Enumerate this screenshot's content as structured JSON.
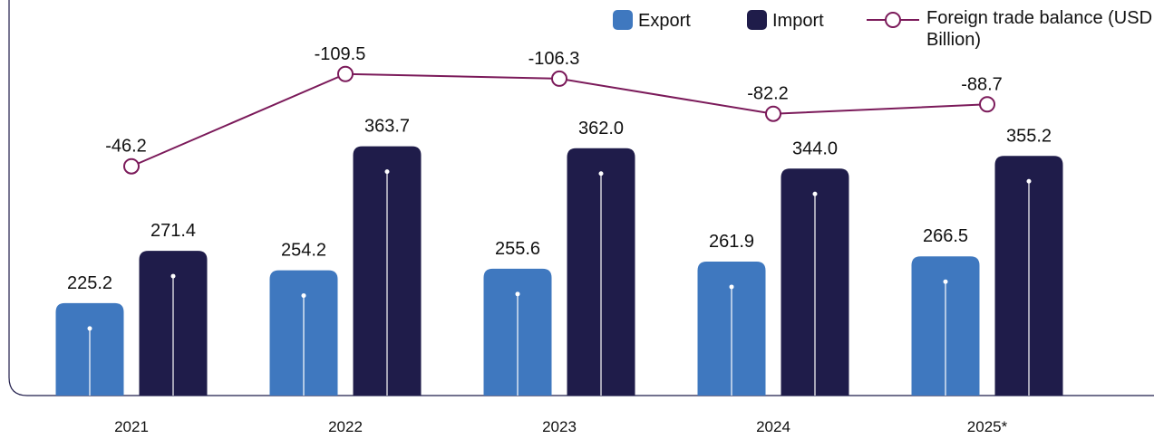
{
  "chart_data": {
    "type": "bar",
    "categories": [
      "2021",
      "2022",
      "2023",
      "2024",
      "2025*"
    ],
    "series": [
      {
        "name": "Export",
        "color": "#3f78bf",
        "values": [
          225.2,
          254.2,
          255.6,
          261.9,
          266.5
        ]
      },
      {
        "name": "Import",
        "color": "#1f1c4a",
        "values": [
          271.4,
          363.7,
          362.0,
          344.0,
          355.2
        ],
        "value_labels": [
          "271.4",
          "363.7",
          "362.0",
          "344.0",
          "355.2"
        ]
      },
      {
        "name": "Foreign trade balance (USD Billion)",
        "type": "line",
        "axis": "y2",
        "color": "#7b1a5a",
        "values": [
          -46.2,
          -109.5,
          -106.3,
          -82.2,
          -88.7
        ]
      }
    ],
    "ylim": [
      143.5,
      445
    ],
    "y2lim": [
      111,
      -123
    ],
    "legend": "top-right"
  }
}
